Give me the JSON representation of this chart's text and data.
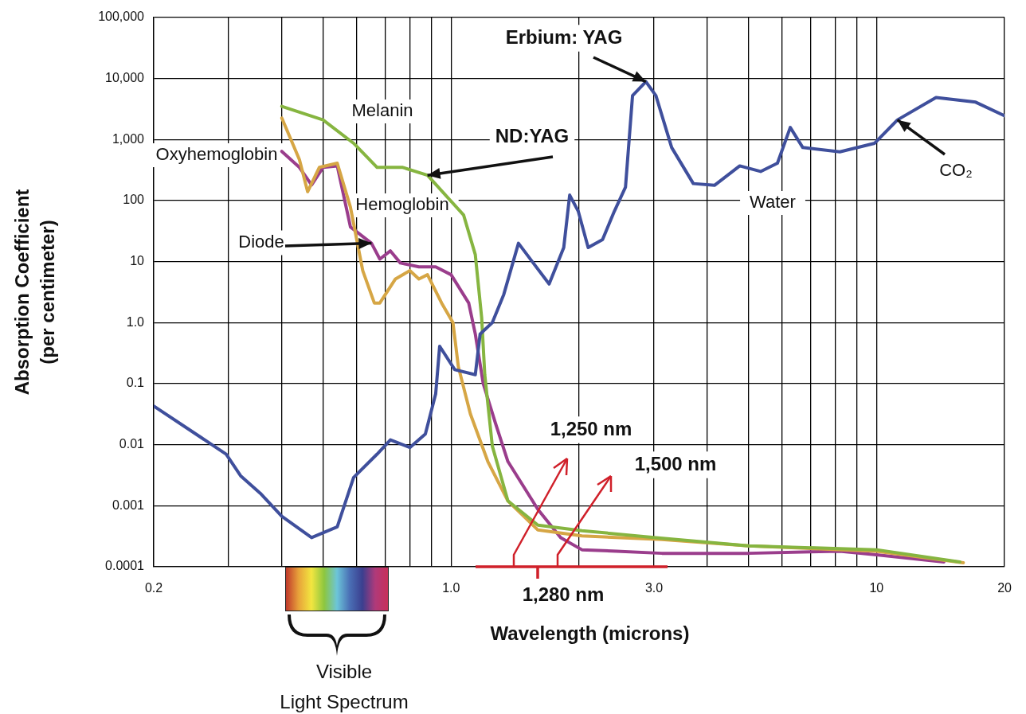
{
  "chart_data": {
    "type": "line",
    "xlabel": "Wavelength (microns)",
    "ylabel": "Absorption Coefficient (per centimeter)",
    "log": "xy",
    "grid": true,
    "marker": "none",
    "line_style": "solid",
    "xlim": [
      0.2,
      20
    ],
    "ylim": [
      0.0001,
      100000
    ],
    "xticks": [
      0.2,
      {
        "value": 0.3,
        "label": null
      },
      {
        "value": 0.4,
        "label": null
      },
      {
        "value": 0.5,
        "label": null
      },
      {
        "value": 0.6,
        "label": null
      },
      {
        "value": 0.7,
        "label": null
      },
      {
        "value": 0.8,
        "label": null
      },
      {
        "value": 0.9,
        "label": null
      },
      {
        "value": 1,
        "label": "1.0"
      },
      {
        "value": 2,
        "label": null
      },
      {
        "value": 3,
        "label": "3.0"
      },
      {
        "value": 4,
        "label": null
      },
      {
        "value": 5,
        "label": null
      },
      {
        "value": 6,
        "label": null
      },
      {
        "value": 7,
        "label": null
      },
      {
        "value": 8,
        "label": null
      },
      {
        "value": 9,
        "label": null
      },
      10,
      20
    ],
    "yticks": [
      0.0001,
      0.001,
      0.01,
      0.1,
      {
        "value": 1,
        "label": "1.0"
      },
      10,
      100,
      {
        "value": 1000,
        "label": "1,000"
      },
      {
        "value": 10000,
        "label": "10,000"
      },
      {
        "value": 100000,
        "label": "100,000"
      }
    ],
    "series": [
      {
        "name": "Water",
        "color": "#3f4f9c",
        "x": [
          0.2,
          0.296,
          0.32,
          0.356,
          0.4,
          0.47,
          0.54,
          0.59,
          0.67,
          0.72,
          0.8,
          0.87,
          0.92,
          0.94,
          1.02,
          1.14,
          1.17,
          1.25,
          1.33,
          1.44,
          1.56,
          1.7,
          1.84,
          1.9,
          1.99,
          2.1,
          2.27,
          2.42,
          2.57,
          2.67,
          2.87,
          3.03,
          3.3,
          3.71,
          4.16,
          4.77,
          5.34,
          5.85,
          6.27,
          6.71,
          8.2,
          9.9,
          11.2,
          13.8,
          17.1,
          20
        ],
        "values": [
          0.043,
          0.007,
          0.0031,
          0.0016,
          0.00067,
          0.0003,
          0.00045,
          0.0029,
          0.007,
          0.012,
          0.009,
          0.015,
          0.068,
          0.41,
          0.17,
          0.14,
          0.65,
          1.0,
          2.9,
          20,
          9.5,
          4.3,
          17,
          123,
          67,
          17,
          23,
          67,
          166,
          5250,
          8900,
          5250,
          740,
          190,
          178,
          370,
          300,
          410,
          1580,
          740,
          630,
          870,
          2100,
          4900,
          4100,
          2450
        ]
      },
      {
        "name": "Melanin",
        "color": "#86b540",
        "x": [
          0.4,
          0.5,
          0.59,
          0.67,
          0.77,
          0.88,
          1.07,
          1.14,
          1.18,
          1.2,
          1.25,
          1.36,
          1.6,
          2.03,
          3.03,
          5.0,
          10,
          15.7
        ],
        "values": [
          3500,
          2100,
          870,
          350,
          350,
          260,
          58,
          13,
          1.2,
          0.14,
          0.0095,
          0.0012,
          0.00048,
          0.00039,
          0.0003,
          0.00022,
          0.00019,
          0.00012
        ]
      },
      {
        "name": "Hemoglobin",
        "color": "#d6a645",
        "x": [
          0.4,
          0.44,
          0.46,
          0.49,
          0.54,
          0.58,
          0.62,
          0.66,
          0.68,
          0.74,
          0.8,
          0.84,
          0.88,
          0.95,
          1.01,
          1.04,
          1.11,
          1.22,
          1.36,
          1.6,
          2.03,
          3.13,
          5.0,
          10,
          16
        ],
        "values": [
          2250,
          470,
          140,
          350,
          410,
          78,
          7.1,
          2.1,
          2.1,
          5.2,
          7.1,
          5.2,
          6.1,
          2.1,
          1.0,
          0.19,
          0.032,
          0.0053,
          0.0012,
          0.0004,
          0.00032,
          0.00028,
          0.00022,
          0.00018,
          0.000116
        ]
      },
      {
        "name": "Oxyhemoglobin",
        "color": "#9a3d8c",
        "x": [
          0.4,
          0.44,
          0.47,
          0.5,
          0.54,
          0.58,
          0.65,
          0.68,
          0.72,
          0.76,
          0.84,
          0.92,
          1.0,
          1.1,
          1.14,
          1.19,
          1.27,
          1.36,
          1.6,
          1.81,
          2.03,
          2.45,
          3.13,
          5.0,
          8.2,
          10,
          14.4
        ],
        "values": [
          640,
          350,
          180,
          350,
          370,
          37,
          20,
          11,
          15,
          9.5,
          8.2,
          8.2,
          6.1,
          2.1,
          0.65,
          0.1,
          0.023,
          0.0053,
          0.00087,
          0.0003,
          0.00019,
          0.00018,
          0.000166,
          0.000166,
          0.00018,
          0.000157,
          0.00012
        ]
      }
    ],
    "annotations": [
      {
        "text": "Erbium: YAG",
        "x": 2.87,
        "y": 8900
      },
      {
        "text": "ND:YAG",
        "x": 0.88,
        "y": 260
      },
      {
        "text": "Diode",
        "x": 0.65,
        "y": 20
      },
      {
        "text": "CO₂",
        "x": 11.2,
        "y": 2100
      },
      "1,250 nm",
      "1,500 nm",
      "1,280 nm",
      "Visible Light Spectrum"
    ]
  }
}
